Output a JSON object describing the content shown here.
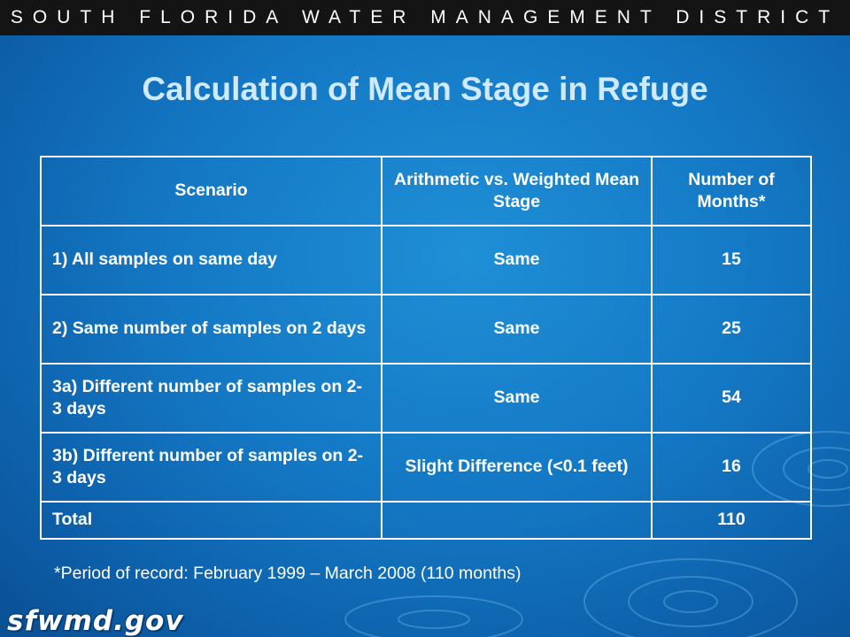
{
  "header": {
    "banner": "SOUTH FLORIDA WATER MANAGEMENT DISTRICT"
  },
  "slide": {
    "title": "Calculation of Mean Stage in Refuge",
    "table": {
      "headers": [
        "Scenario",
        "Arithmetic vs. Weighted Mean Stage",
        "Number of Months*"
      ],
      "rows": [
        [
          "1) All samples on same day",
          "Same",
          "15"
        ],
        [
          "2) Same number of samples on 2 days",
          "Same",
          "25"
        ],
        [
          "3a) Different number of samples on 2-3 days",
          "Same",
          "54"
        ],
        [
          "3b) Different number of samples on 2-3 days",
          "Slight Difference (<0.1 feet)",
          "16"
        ],
        [
          "Total",
          "",
          "110"
        ]
      ]
    },
    "footnote": "*Period of record: February 1999 – March 2008 (110 months)"
  },
  "footer": {
    "logo_text": "sfwmd.gov"
  },
  "colors": {
    "title": "#cfe9ff",
    "background": "#1478c4",
    "banner": "#141414"
  }
}
